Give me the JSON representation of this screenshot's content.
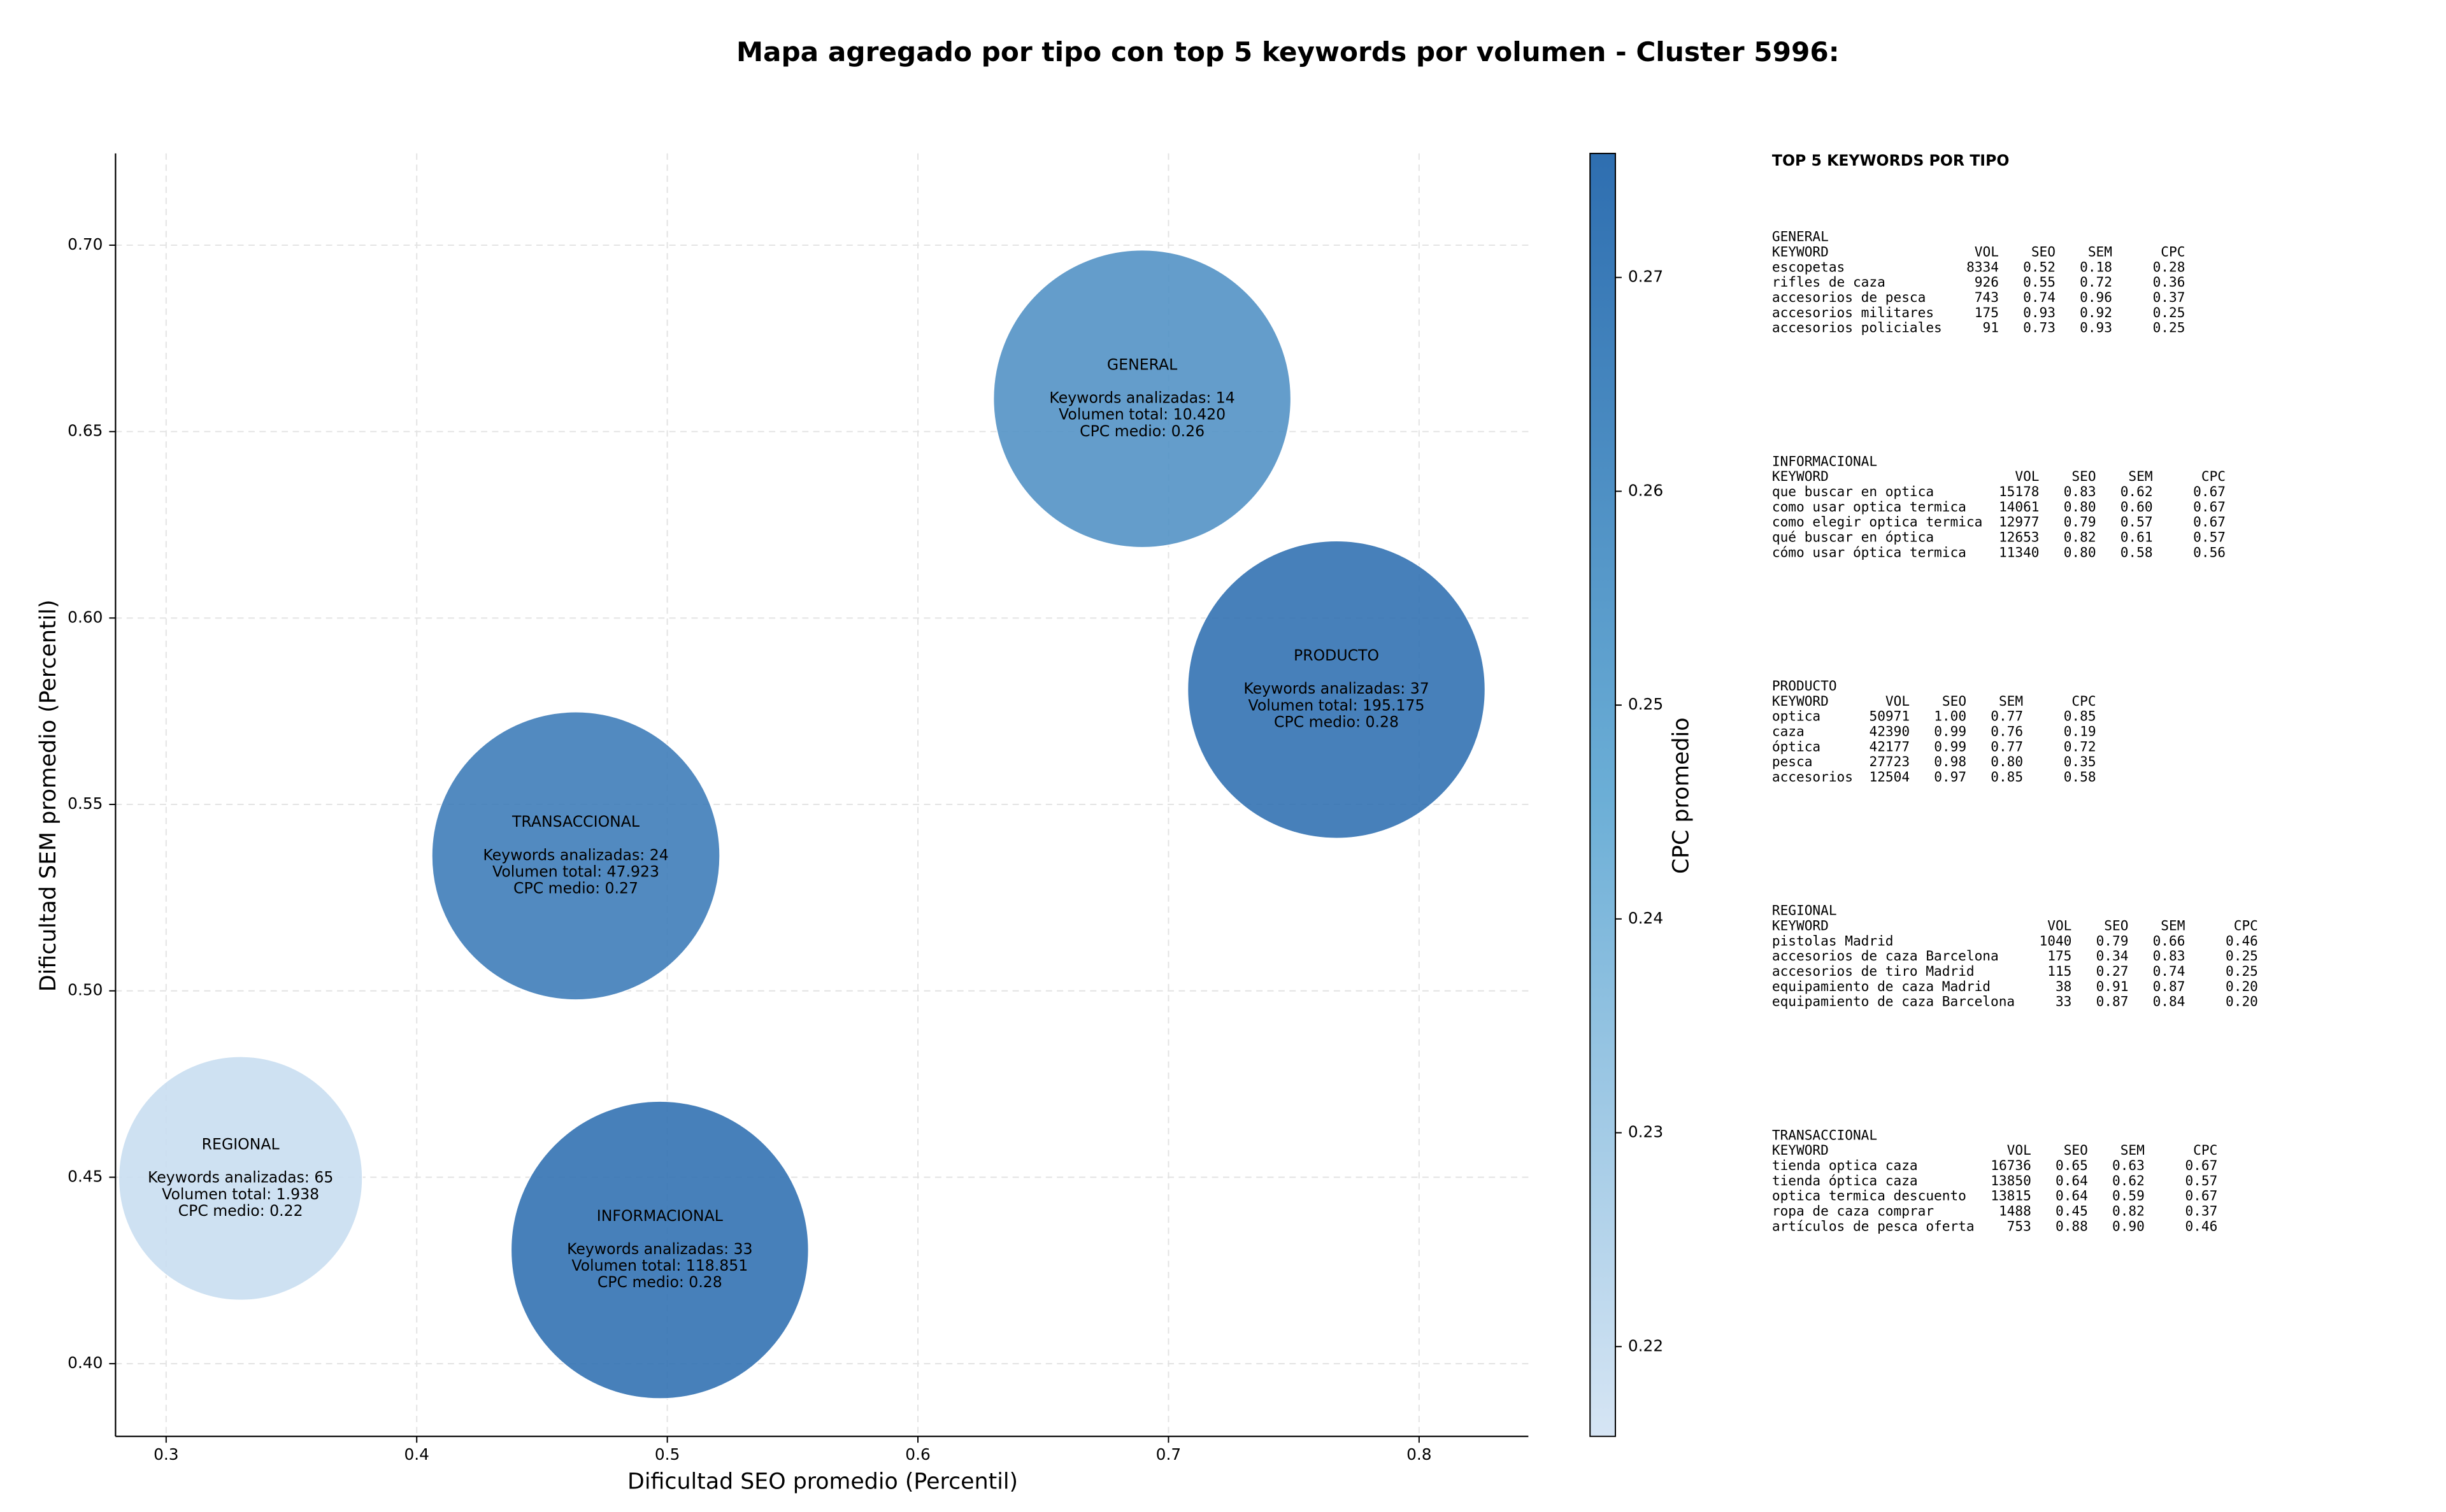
{
  "chart_data": {
    "type": "scatter",
    "title": "Mapa agregado por tipo con top 5 keywords por volumen - Cluster 5996:",
    "x_label": "Dificultad SEO promedio (Percentil)",
    "y_label": "Dificultad SEM promedio (Percentil)",
    "colorbar_label": "CPC promedio",
    "xlim": [
      0.2798,
      0.8436
    ],
    "ylim": [
      0.3805,
      0.7246
    ],
    "xticks": [
      0.3,
      0.4,
      0.5,
      0.6,
      0.7,
      0.8
    ],
    "yticks": [
      {
        "value": 0.4,
        "label": "0.40"
      },
      {
        "value": 0.45,
        "label": "0.45"
      },
      {
        "value": 0.5,
        "label": "0.50"
      },
      {
        "value": 0.55,
        "label": "0.55"
      },
      {
        "value": 0.6,
        "label": "0.60"
      },
      {
        "value": 0.65,
        "label": "0.65"
      },
      {
        "value": 0.7,
        "label": "0.70"
      }
    ],
    "clim": [
      0.2158,
      0.2758
    ],
    "cticks": [
      0.22,
      0.23,
      0.24,
      0.25,
      0.26,
      0.27
    ],
    "colormap": [
      "#d6e5f4",
      "#6baed6",
      "#2e6eb0"
    ],
    "grid": true,
    "points": [
      {
        "name": "GENERAL",
        "x": 0.6895,
        "y": 0.6588,
        "cpc": 0.26,
        "annotation": [
          "Keywords analizadas: 14",
          "Volumen total: 10.420",
          "CPC medio: 0.26"
        ]
      },
      {
        "name": "PRODUCTO",
        "x": 0.767,
        "y": 0.5808,
        "cpc": 0.28,
        "annotation": [
          "Keywords analizadas: 37",
          "Volumen total: 195.175",
          "CPC medio: 0.28"
        ]
      },
      {
        "name": "TRANSACCIONAL",
        "x": 0.4635,
        "y": 0.5362,
        "cpc": 0.27,
        "annotation": [
          "Keywords analizadas: 24",
          "Volumen total: 47.923",
          "CPC medio: 0.27"
        ]
      },
      {
        "name": "REGIONAL",
        "x": 0.3297,
        "y": 0.4497,
        "cpc": 0.22,
        "annotation": [
          "Keywords analizadas: 65",
          "Volumen total: 1.938",
          "CPC medio: 0.22"
        ]
      },
      {
        "name": "INFORMACIONAL",
        "x": 0.497,
        "y": 0.4305,
        "cpc": 0.28,
        "annotation": [
          "Keywords analizadas: 33",
          "Volumen total: 118.851",
          "CPC medio: 0.28"
        ]
      }
    ]
  },
  "top_keywords": {
    "title": "TOP 5 KEYWORDS POR TIPO",
    "header": [
      "KEYWORD",
      "VOL",
      "SEO",
      "SEM",
      "CPC"
    ],
    "groups": [
      {
        "name": "GENERAL",
        "rows": [
          [
            "escopetas",
            "8334",
            "0.52",
            "0.18",
            "0.28"
          ],
          [
            "rifles de caza",
            "926",
            "0.55",
            "0.72",
            "0.36"
          ],
          [
            "accesorios de pesca",
            "743",
            "0.74",
            "0.96",
            "0.37"
          ],
          [
            "accesorios militares",
            "175",
            "0.93",
            "0.92",
            "0.25"
          ],
          [
            "accesorios policiales",
            "91",
            "0.73",
            "0.93",
            "0.25"
          ]
        ]
      },
      {
        "name": "INFORMACIONAL",
        "rows": [
          [
            "que buscar en optica",
            "15178",
            "0.83",
            "0.62",
            "0.67"
          ],
          [
            "como usar optica termica",
            "14061",
            "0.80",
            "0.60",
            "0.67"
          ],
          [
            "como elegir optica termica",
            "12977",
            "0.79",
            "0.57",
            "0.67"
          ],
          [
            "qué buscar en óptica",
            "12653",
            "0.82",
            "0.61",
            "0.57"
          ],
          [
            "cómo usar óptica termica",
            "11340",
            "0.80",
            "0.58",
            "0.56"
          ]
        ]
      },
      {
        "name": "PRODUCTO",
        "rows": [
          [
            "optica",
            "50971",
            "1.00",
            "0.77",
            "0.85"
          ],
          [
            "caza",
            "42390",
            "0.99",
            "0.76",
            "0.19"
          ],
          [
            "óptica",
            "42177",
            "0.99",
            "0.77",
            "0.72"
          ],
          [
            "pesca",
            "27723",
            "0.98",
            "0.80",
            "0.35"
          ],
          [
            "accesorios",
            "12504",
            "0.97",
            "0.85",
            "0.58"
          ]
        ]
      },
      {
        "name": "REGIONAL",
        "rows": [
          [
            "pistolas Madrid",
            "1040",
            "0.79",
            "0.66",
            "0.46"
          ],
          [
            "accesorios de caza Barcelona",
            "175",
            "0.34",
            "0.83",
            "0.25"
          ],
          [
            "accesorios de tiro Madrid",
            "115",
            "0.27",
            "0.74",
            "0.25"
          ],
          [
            "equipamiento de caza Madrid",
            "38",
            "0.91",
            "0.87",
            "0.20"
          ],
          [
            "equipamiento de caza Barcelona",
            "33",
            "0.87",
            "0.84",
            "0.20"
          ]
        ]
      },
      {
        "name": "TRANSACCIONAL",
        "rows": [
          [
            "tienda optica caza",
            "16736",
            "0.65",
            "0.63",
            "0.67"
          ],
          [
            "tienda óptica caza",
            "13850",
            "0.64",
            "0.62",
            "0.57"
          ],
          [
            "optica termica descuento",
            "13815",
            "0.64",
            "0.59",
            "0.67"
          ],
          [
            "ropa de caza comprar",
            "1488",
            "0.45",
            "0.82",
            "0.37"
          ],
          [
            "artículos de pesca oferta",
            "753",
            "0.88",
            "0.90",
            "0.46"
          ]
        ]
      }
    ]
  }
}
